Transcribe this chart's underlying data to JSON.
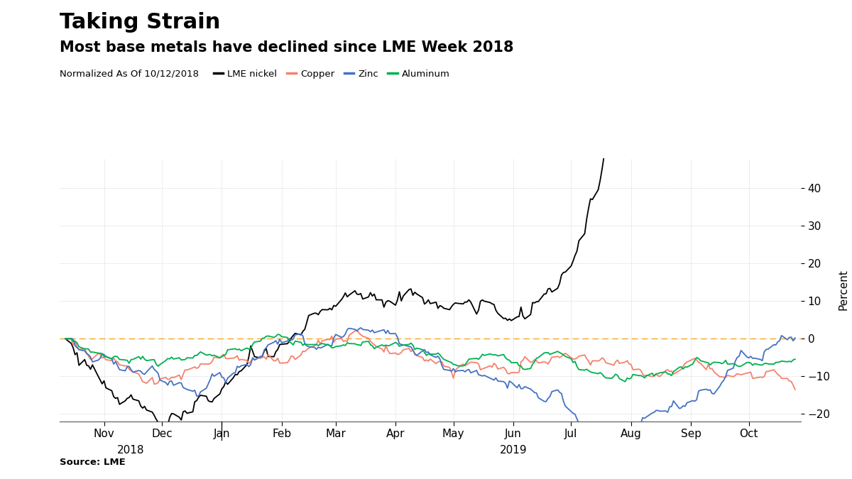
{
  "title": "Taking Strain",
  "subtitle": "Most base metals have declined since LME Week 2018",
  "legend_label": "Normalized As Of 10/12/2018",
  "source": "Source: LME",
  "series_names": [
    "LME nickel",
    "Copper",
    "Zinc",
    "Aluminum"
  ],
  "series_colors": [
    "#000000",
    "#f4826e",
    "#4472c4",
    "#00b050"
  ],
  "ylabel": "Percent",
  "ylim": [
    -22,
    48
  ],
  "yticks": [
    -20,
    -10,
    0,
    10,
    20,
    30,
    40
  ],
  "background_color": "#ffffff",
  "plot_bg_color": "#ffffff",
  "grid_color": "#c8c8c8",
  "zero_line_color": "#f5a623",
  "title_fontsize": 22,
  "subtitle_fontsize": 15,
  "axis_fontsize": 11
}
